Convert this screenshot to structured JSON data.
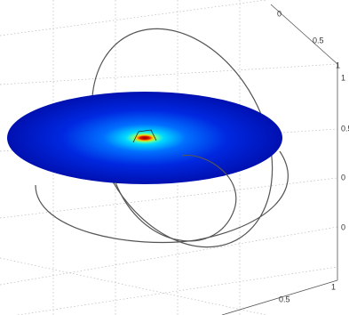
{
  "axes": {
    "top_ticks": [
      "0",
      "0.5",
      "1"
    ],
    "right_ticks": [
      "1",
      "0.5",
      "0",
      "0"
    ],
    "bottom_ticks": [
      "0.5",
      "1"
    ]
  }
}
